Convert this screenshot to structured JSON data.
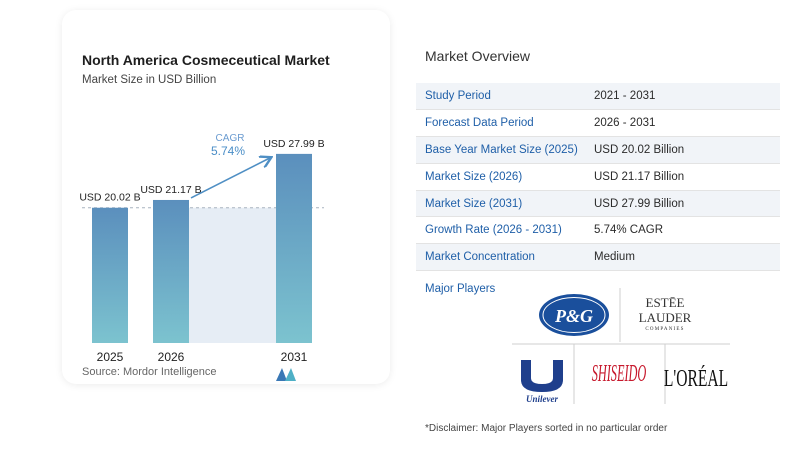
{
  "chart": {
    "title": "North America Cosmeceutical Market",
    "subtitle": "Market Size in USD Billion",
    "cagr_label": "CAGR",
    "cagr_value": "5.74%",
    "source": "Source:  Mordor Intelligence",
    "colors": {
      "bar_top": "#5b8fbd",
      "bar_bottom": "#7cc3cf",
      "band": "#e6edf5",
      "arrow": "#4f8fc4",
      "cagr_text": "#4a8ec7"
    }
  },
  "chart_data": {
    "type": "bar",
    "categories": [
      "2025",
      "2026",
      "2031"
    ],
    "values": [
      20.02,
      21.17,
      27.99
    ],
    "data_labels": [
      "USD 20.02 B",
      "USD 21.17 B",
      "USD 27.99 B"
    ],
    "title": "North America Cosmeceutical Market",
    "subtitle": "Market Size in USD Billion",
    "xlabel": "",
    "ylabel": "",
    "ylim": [
      0,
      29
    ],
    "grid": false,
    "legend": "none",
    "annotation": "CAGR 5.74%"
  },
  "overview": {
    "title": "Market Overview",
    "rows": [
      {
        "key": "Study Period",
        "value": "2021 - 2031"
      },
      {
        "key": "Forecast Data Period",
        "value": "2026 - 2031"
      },
      {
        "key": "Base Year Market Size (2025)",
        "value": "USD 20.02 Billion"
      },
      {
        "key": "Market Size (2026)",
        "value": "USD 21.17 Billion"
      },
      {
        "key": "Market Size (2031)",
        "value": "USD 27.99 Billion"
      },
      {
        "key": "Growth Rate (2026 - 2031)",
        "value": "5.74% CAGR"
      },
      {
        "key": "Market Concentration",
        "value": "Medium"
      }
    ],
    "players_label": "Major Players",
    "players": {
      "pg": "P&G",
      "estee_1": "ESTĒE",
      "estee_2": "LAUDER",
      "estee_3": "COMPANIES",
      "unilever": "Unilever",
      "shiseido": "SHISEIDO",
      "loreal": "L'ORÉAL"
    },
    "disclaimer": "*Disclaimer: Major Players sorted in no particular order"
  }
}
